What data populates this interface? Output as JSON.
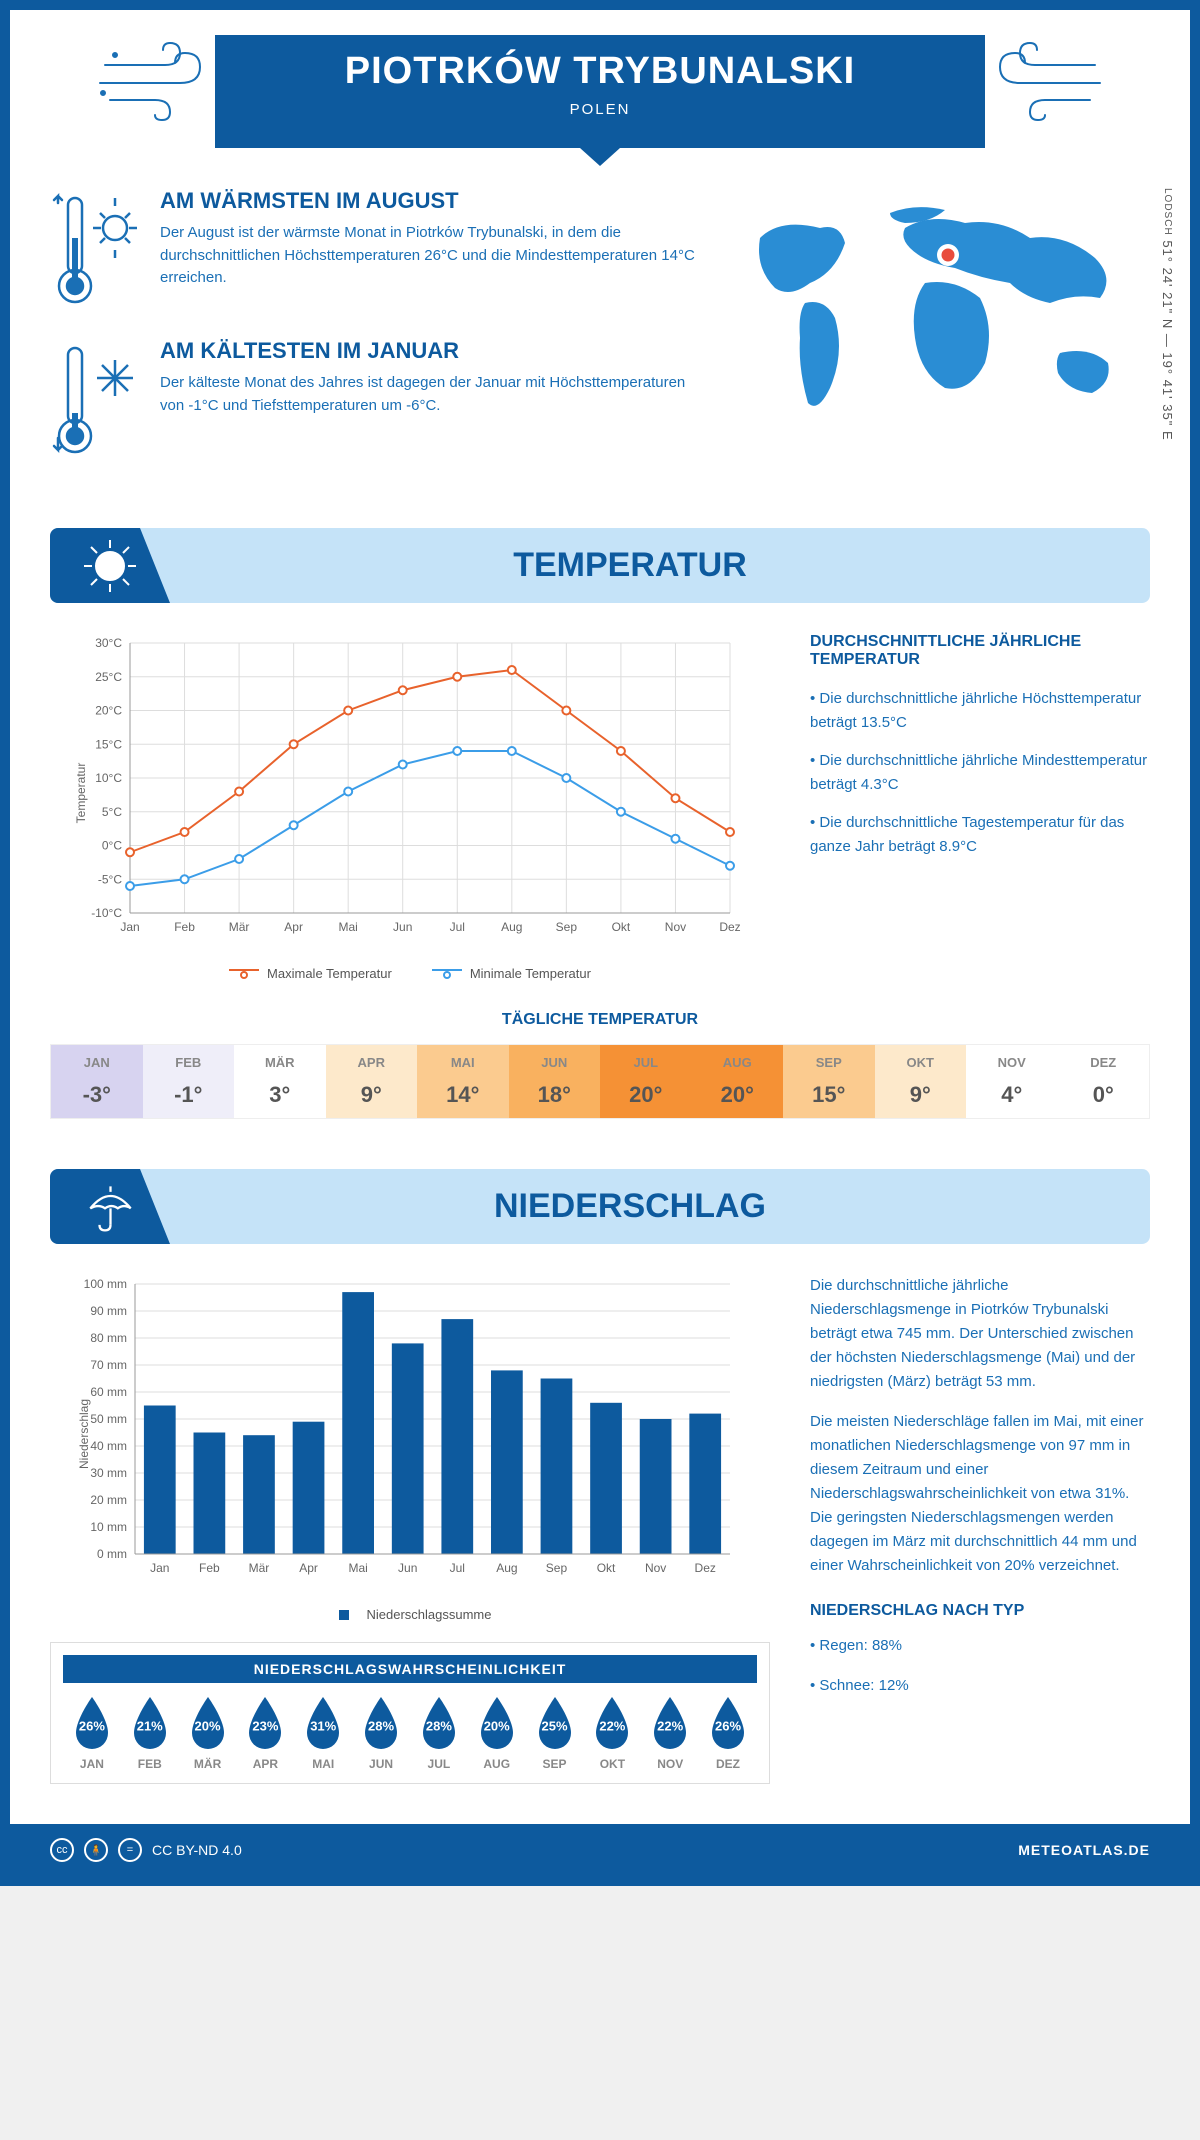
{
  "header": {
    "title": "PIOTRKÓW TRYBUNALSKI",
    "country": "POLEN",
    "coords": "51° 24' 21\" N — 19° 41' 35\" E",
    "coords_note": "LODSCH"
  },
  "intro": {
    "warm": {
      "title": "AM WÄRMSTEN IM AUGUST",
      "text": "Der August ist der wärmste Monat in Piotrków Trybunalski, in dem die durchschnittlichen Höchsttemperaturen 26°C und die Mindesttemperaturen 14°C erreichen."
    },
    "cold": {
      "title": "AM KÄLTESTEN IM JANUAR",
      "text": "Der kälteste Monat des Jahres ist dagegen der Januar mit Höchsttemperaturen von -1°C und Tiefsttemperaturen um -6°C."
    }
  },
  "temperature": {
    "section_title": "TEMPERATUR",
    "chart": {
      "type": "line",
      "months": [
        "Jan",
        "Feb",
        "Mär",
        "Apr",
        "Mai",
        "Jun",
        "Jul",
        "Aug",
        "Sep",
        "Okt",
        "Nov",
        "Dez"
      ],
      "max_series": {
        "label": "Maximale Temperatur",
        "color": "#e8622c",
        "values": [
          -1,
          2,
          8,
          15,
          20,
          23,
          25,
          26,
          20,
          14,
          7,
          2
        ]
      },
      "min_series": {
        "label": "Minimale Temperatur",
        "color": "#3b9de8",
        "values": [
          -6,
          -5,
          -2,
          3,
          8,
          12,
          14,
          14,
          10,
          5,
          1,
          -3
        ]
      },
      "ylim": [
        -10,
        30
      ],
      "ytick_step": 5,
      "y_title": "Temperatur",
      "grid_color": "#dddddd",
      "axis_color": "#999999",
      "marker": "circle",
      "line_width": 2
    },
    "summary": {
      "title": "DURCHSCHNITTLICHE JÄHRLICHE TEMPERATUR",
      "bullets": [
        "• Die durchschnittliche jährliche Höchsttemperatur beträgt 13.5°C",
        "• Die durchschnittliche jährliche Mindesttemperatur beträgt 4.3°C",
        "• Die durchschnittliche Tagestemperatur für das ganze Jahr beträgt 8.9°C"
      ]
    },
    "daily": {
      "title": "TÄGLICHE TEMPERATUR",
      "months": [
        "JAN",
        "FEB",
        "MÄR",
        "APR",
        "MAI",
        "JUN",
        "JUL",
        "AUG",
        "SEP",
        "OKT",
        "NOV",
        "DEZ"
      ],
      "temps": [
        "-3°",
        "-1°",
        "3°",
        "9°",
        "14°",
        "18°",
        "20°",
        "20°",
        "15°",
        "9°",
        "4°",
        "0°"
      ],
      "colors": [
        "#d7d3f0",
        "#efeef9",
        "#ffffff",
        "#fde9cb",
        "#fbcb8f",
        "#f9b15f",
        "#f59135",
        "#f59135",
        "#fbcb8f",
        "#fde9cb",
        "#ffffff",
        "#ffffff"
      ]
    }
  },
  "precip": {
    "section_title": "NIEDERSCHLAG",
    "chart": {
      "type": "bar",
      "months": [
        "Jan",
        "Feb",
        "Mär",
        "Apr",
        "Mai",
        "Jun",
        "Jul",
        "Aug",
        "Sep",
        "Okt",
        "Nov",
        "Dez"
      ],
      "values": [
        55,
        45,
        44,
        49,
        97,
        78,
        87,
        68,
        65,
        56,
        50,
        52
      ],
      "ylim": [
        0,
        100
      ],
      "ytick_step": 10,
      "y_unit": "mm",
      "y_title": "Niederschlag",
      "bar_color": "#0d5a9e",
      "grid_color": "#dddddd",
      "legend_label": "Niederschlagssumme"
    },
    "text": {
      "p1": "Die durchschnittliche jährliche Niederschlagsmenge in Piotrków Trybunalski beträgt etwa 745 mm. Der Unterschied zwischen der höchsten Niederschlagsmenge (Mai) und der niedrigsten (März) beträgt 53 mm.",
      "p2": "Die meisten Niederschläge fallen im Mai, mit einer monatlichen Niederschlagsmenge von 97 mm in diesem Zeitraum und einer Niederschlagswahrscheinlichkeit von etwa 31%. Die geringsten Niederschlagsmengen werden dagegen im März mit durchschnittlich 44 mm und einer Wahrscheinlichkeit von 20% verzeichnet.",
      "type_title": "NIEDERSCHLAG NACH TYP",
      "type_rain": "• Regen: 88%",
      "type_snow": "• Schnee: 12%"
    },
    "probability": {
      "title": "NIEDERSCHLAGSWAHRSCHEINLICHKEIT",
      "months": [
        "JAN",
        "FEB",
        "MÄR",
        "APR",
        "MAI",
        "JUN",
        "JUL",
        "AUG",
        "SEP",
        "OKT",
        "NOV",
        "DEZ"
      ],
      "values": [
        "26%",
        "21%",
        "20%",
        "23%",
        "31%",
        "28%",
        "28%",
        "20%",
        "25%",
        "22%",
        "22%",
        "26%"
      ],
      "drop_color": "#0d5a9e"
    }
  },
  "footer": {
    "license": "CC BY-ND 4.0",
    "source": "METEOATLAS.DE"
  },
  "colors": {
    "primary": "#0d5a9e",
    "light_blue": "#c5e3f8",
    "text_blue": "#1a6fb5"
  }
}
